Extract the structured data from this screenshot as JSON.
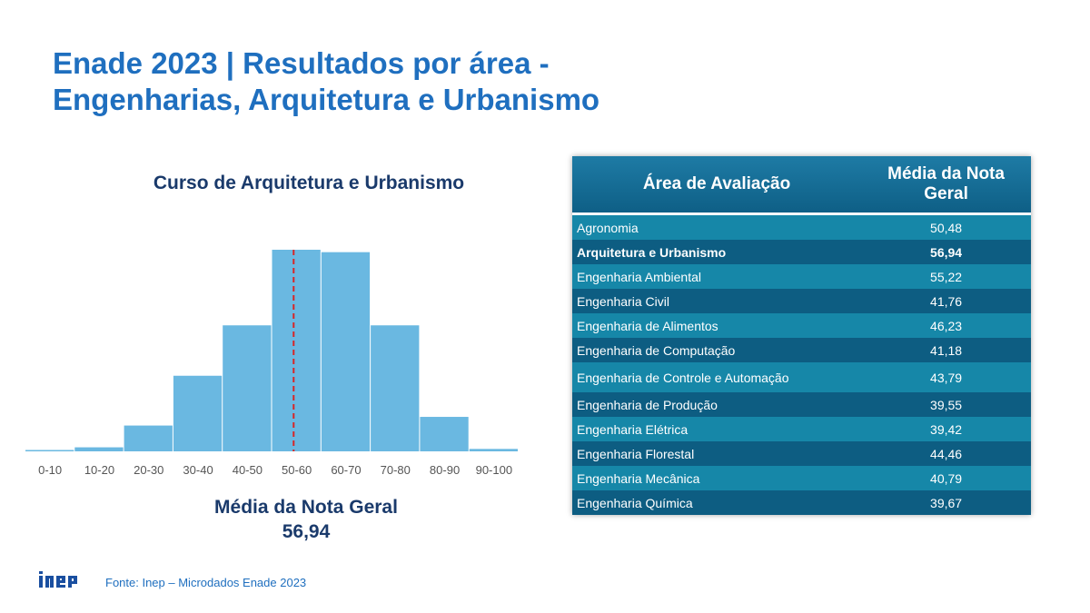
{
  "title": {
    "line1": "Enade 2023 | Resultados por área -",
    "line2": "Engenharias, Arquitetura e Urbanismo"
  },
  "colors": {
    "title": "#1f6fbf",
    "navy": "#1a3a6b",
    "bar": "#6ab8e1",
    "mean_line": "#d62728",
    "table_header": "#156c95"
  },
  "chart_data": {
    "type": "bar",
    "title": "Curso de Arquitetura e Urbanismo",
    "categories": [
      "0-10",
      "10-20",
      "20-30",
      "30-40",
      "40-50",
      "50-60",
      "60-70",
      "70-80",
      "80-90",
      "90-100"
    ],
    "values": [
      0.2,
      2.0,
      12.8,
      37.5,
      62.5,
      100,
      98.8,
      62.5,
      17.1,
      1.2
    ],
    "ylim": [
      0,
      100
    ],
    "grid": false,
    "mean_marker": 56.94,
    "mean_label": "Média da Nota Geral",
    "mean_value": "56,94"
  },
  "table": {
    "headers": {
      "area": "Área de Avaliação",
      "score": "Média da Nota Geral"
    },
    "rows": [
      {
        "area": "Agronomia",
        "score": "50,48"
      },
      {
        "area": "Arquitetura e Urbanismo",
        "score": "56,94",
        "highlight": true
      },
      {
        "area": "Engenharia Ambiental",
        "score": "55,22"
      },
      {
        "area": "Engenharia Civil",
        "score": "41,76"
      },
      {
        "area": "Engenharia de Alimentos",
        "score": "46,23"
      },
      {
        "area": "Engenharia de Computação",
        "score": "41,18"
      },
      {
        "area": "Engenharia de Controle e Automação",
        "score": "43,79"
      },
      {
        "area": "Engenharia de Produção",
        "score": "39,55"
      },
      {
        "area": "Engenharia Elétrica",
        "score": "39,42"
      },
      {
        "area": "Engenharia Florestal",
        "score": "44,46"
      },
      {
        "area": "Engenharia Mecânica",
        "score": "40,79"
      },
      {
        "area": "Engenharia Química",
        "score": "39,67"
      }
    ]
  },
  "footer": {
    "logo": "inep",
    "source": "Fonte: Inep – Microdados Enade 2023"
  }
}
